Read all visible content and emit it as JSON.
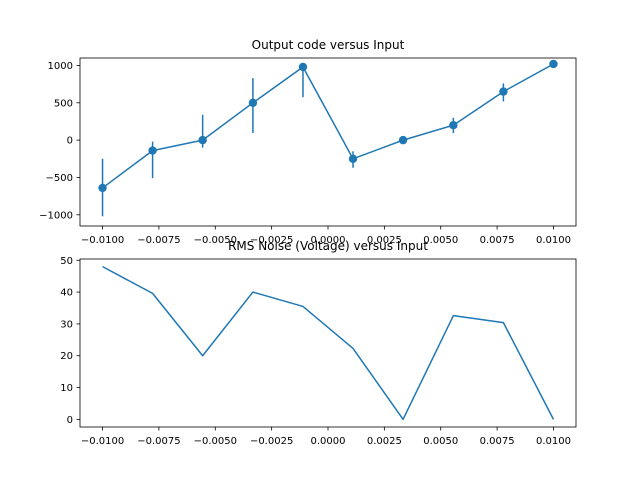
{
  "colors": {
    "series": "#1f77b4",
    "axis": "#000000",
    "background": "#ffffff"
  },
  "chart_data": [
    {
      "type": "line",
      "title": "Output code versus Input",
      "xlabel": "",
      "ylabel": "",
      "markers": "circle",
      "error_bars": true,
      "grid": false,
      "xlim": [
        -0.011,
        0.011
      ],
      "ylim": [
        -1150,
        1100
      ],
      "xticks": [
        -0.01,
        -0.0075,
        -0.005,
        -0.0025,
        0.0,
        0.0025,
        0.005,
        0.0075,
        0.01
      ],
      "xtick_labels": [
        "−0.0100",
        "−0.0075",
        "−0.0050",
        "−0.0025",
        "0.0000",
        "0.0025",
        "0.0050",
        "0.0075",
        "0.0100"
      ],
      "yticks": [
        -1000,
        -500,
        0,
        500,
        1000
      ],
      "ytick_labels": [
        "−1000",
        "−500",
        "0",
        "500",
        "1000"
      ],
      "series": [
        {
          "x": [
            -0.01,
            -0.00778,
            -0.00556,
            -0.00333,
            -0.00111,
            0.00111,
            0.00333,
            0.00556,
            0.00778,
            0.01
          ],
          "y": [
            -640,
            -140,
            0,
            500,
            980,
            -250,
            0,
            200,
            650,
            1020
          ],
          "yerr_low": [
            -1020,
            -510,
            -100,
            95,
            575,
            -370,
            -10,
            95,
            520,
            1020
          ],
          "yerr_high": [
            -250,
            -20,
            340,
            830,
            980,
            -150,
            10,
            300,
            760,
            1020
          ]
        }
      ]
    },
    {
      "type": "line",
      "title": "RMS Noise (Voltage) versus Input",
      "xlabel": "",
      "ylabel": "",
      "markers": "none",
      "grid": false,
      "xlim": [
        -0.011,
        0.011
      ],
      "ylim": [
        -2.4,
        50.4
      ],
      "xticks": [
        -0.01,
        -0.0075,
        -0.005,
        -0.0025,
        0.0,
        0.0025,
        0.005,
        0.0075,
        0.01
      ],
      "xtick_labels": [
        "−0.0100",
        "−0.0075",
        "−0.0050",
        "−0.0025",
        "0.0000",
        "0.0025",
        "0.0050",
        "0.0075",
        "0.0100"
      ],
      "yticks": [
        0,
        10,
        20,
        30,
        40,
        50
      ],
      "ytick_labels": [
        "0",
        "10",
        "20",
        "30",
        "40",
        "50"
      ],
      "series": [
        {
          "x": [
            -0.01,
            -0.00778,
            -0.00556,
            -0.00333,
            -0.00111,
            0.00111,
            0.00333,
            0.00556,
            0.00778,
            0.01
          ],
          "y": [
            48,
            39.6,
            20,
            40,
            35.5,
            22.3,
            0,
            32.6,
            30.4,
            0
          ]
        }
      ]
    }
  ]
}
